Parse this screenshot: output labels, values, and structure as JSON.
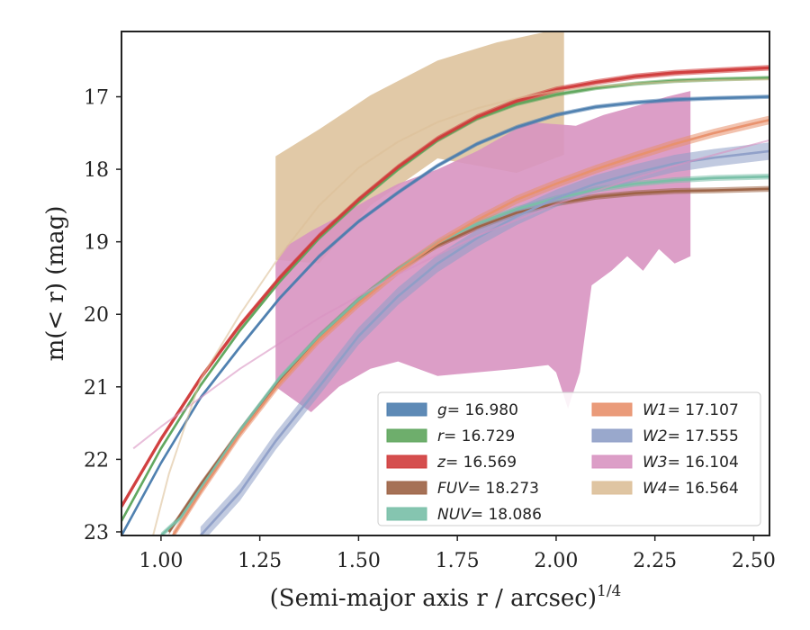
{
  "chart_data": {
    "type": "line",
    "xlabel": "(Semi-major axis r / arcsec)",
    "xlabel_sup": "1/4",
    "ylabel": "m(< r) (mag)",
    "xlim": [
      0.9,
      2.54
    ],
    "ylim": [
      23.05,
      16.1
    ],
    "y_inverted": true,
    "x_ticks": [
      1.0,
      1.25,
      1.5,
      1.75,
      2.0,
      2.25,
      2.5
    ],
    "x_tick_labels": [
      "1.00",
      "1.25",
      "1.50",
      "1.75",
      "2.00",
      "2.25",
      "2.50"
    ],
    "y_ticks": [
      17,
      18,
      19,
      20,
      21,
      22,
      23
    ],
    "y_tick_labels": [
      "17",
      "18",
      "19",
      "20",
      "21",
      "22",
      "23"
    ],
    "legend_placement": "lower-right",
    "series": [
      {
        "name": "g",
        "label": "g = 16.980",
        "color": "#4c7dae",
        "band": 0.03,
        "x": [
          0.9,
          1.0,
          1.1,
          1.2,
          1.3,
          1.4,
          1.5,
          1.6,
          1.7,
          1.8,
          1.9,
          2.0,
          2.1,
          2.2,
          2.3,
          2.4,
          2.54
        ],
        "y": [
          23.05,
          22.05,
          21.15,
          20.45,
          19.78,
          19.2,
          18.72,
          18.32,
          17.95,
          17.65,
          17.42,
          17.25,
          17.14,
          17.08,
          17.04,
          17.02,
          17.0
        ]
      },
      {
        "name": "r",
        "label": "r = 16.729",
        "color": "#5ea55c",
        "band": 0.03,
        "x": [
          0.9,
          1.0,
          1.1,
          1.2,
          1.3,
          1.4,
          1.5,
          1.6,
          1.7,
          1.8,
          1.9,
          2.0,
          2.1,
          2.2,
          2.3,
          2.4,
          2.54
        ],
        "y": [
          22.85,
          21.85,
          20.98,
          20.22,
          19.55,
          18.95,
          18.45,
          18.0,
          17.6,
          17.3,
          17.1,
          16.97,
          16.88,
          16.82,
          16.78,
          16.76,
          16.74
        ]
      },
      {
        "name": "z",
        "label": "z = 16.569",
        "color": "#d03b3b",
        "band": 0.04,
        "x": [
          0.9,
          1.0,
          1.1,
          1.2,
          1.3,
          1.4,
          1.5,
          1.6,
          1.7,
          1.8,
          1.9,
          2.0,
          2.1,
          2.2,
          2.3,
          2.4,
          2.54
        ],
        "y": [
          22.65,
          21.72,
          20.88,
          20.15,
          19.5,
          18.92,
          18.42,
          17.97,
          17.58,
          17.28,
          17.06,
          16.9,
          16.8,
          16.72,
          16.67,
          16.64,
          16.6
        ]
      },
      {
        "name": "FUV",
        "label": "FUV = 18.273",
        "color": "#9c6244",
        "band": 0.04,
        "x": [
          1.02,
          1.1,
          1.2,
          1.3,
          1.4,
          1.5,
          1.6,
          1.7,
          1.8,
          1.9,
          2.0,
          2.1,
          2.2,
          2.3,
          2.4,
          2.54
        ],
        "y": [
          23.0,
          22.35,
          21.6,
          20.9,
          20.3,
          19.8,
          19.38,
          19.05,
          18.8,
          18.6,
          18.47,
          18.38,
          18.33,
          18.3,
          18.29,
          18.27
        ]
      },
      {
        "name": "NUV",
        "label": "NUV = 18.086",
        "color": "#78bfa7",
        "band": 0.04,
        "x": [
          1.0,
          1.05,
          1.1,
          1.2,
          1.3,
          1.4,
          1.5,
          1.6,
          1.7,
          1.8,
          1.9,
          2.0,
          2.1,
          2.2,
          2.3,
          2.4,
          2.54
        ],
        "y": [
          23.05,
          22.8,
          22.4,
          21.6,
          20.88,
          20.3,
          19.8,
          19.38,
          19.02,
          18.75,
          18.55,
          18.4,
          18.28,
          18.2,
          18.15,
          18.12,
          18.1
        ]
      },
      {
        "name": "W1",
        "label": "W1 = 17.107",
        "color": "#e8906c",
        "band": 0.06,
        "x": [
          1.03,
          1.1,
          1.2,
          1.3,
          1.4,
          1.5,
          1.6,
          1.7,
          1.8,
          1.9,
          2.0,
          2.1,
          2.2,
          2.3,
          2.4,
          2.5,
          2.54
        ],
        "y": [
          23.05,
          22.45,
          21.65,
          20.95,
          20.35,
          19.85,
          19.4,
          19.02,
          18.7,
          18.42,
          18.2,
          18.0,
          17.82,
          17.65,
          17.5,
          17.37,
          17.32
        ]
      },
      {
        "name": "W2",
        "label": "W2 = 17.555",
        "color": "#8e9ec7",
        "band": 0.12,
        "x": [
          1.1,
          1.2,
          1.29,
          1.4,
          1.5,
          1.6,
          1.7,
          1.8,
          1.9,
          2.0,
          2.1,
          2.2,
          2.3,
          2.4,
          2.54
        ],
        "y": [
          23.05,
          22.45,
          21.75,
          21.0,
          20.3,
          19.75,
          19.3,
          18.95,
          18.65,
          18.4,
          18.2,
          18.05,
          17.92,
          17.84,
          17.75
        ]
      },
      {
        "name": "W3",
        "label": "W3 = 16.104",
        "color": "#d893c1",
        "band": 0,
        "x": [
          0.93,
          1.0,
          1.1,
          1.2,
          1.3,
          1.4,
          1.5,
          1.6,
          1.7,
          1.8,
          1.9,
          2.0,
          2.1,
          2.2,
          2.3,
          2.4,
          2.54
        ],
        "y": [
          21.85,
          21.55,
          21.15,
          20.75,
          20.4,
          20.05,
          19.75,
          19.45,
          19.18,
          18.92,
          18.7,
          18.48,
          18.3,
          18.12,
          17.95,
          17.8,
          17.6
        ],
        "region_x": [
          1.29,
          1.32,
          1.38,
          1.45,
          1.53,
          1.6,
          1.7,
          1.8,
          1.93,
          2.05,
          2.12,
          2.22,
          2.28,
          2.34,
          2.34,
          2.3,
          2.26,
          2.22,
          2.18,
          2.14,
          2.09,
          2.06,
          2.03,
          2.0,
          1.98,
          1.9,
          1.8,
          1.7,
          1.6,
          1.53,
          1.45,
          1.38,
          1.29
        ],
        "region_y_upper": [
          19.3,
          19.05,
          18.85,
          18.65,
          18.4,
          18.2,
          18.0,
          17.75,
          17.35,
          17.4,
          17.25,
          17.1,
          17.0,
          16.92
        ],
        "region_y_lower": [
          19.2,
          19.3,
          19.1,
          19.4,
          19.2,
          19.4,
          19.6,
          20.8,
          21.3,
          20.8,
          20.7,
          20.75,
          20.8,
          20.85,
          20.65,
          20.75,
          21.0,
          21.35,
          21.0
        ]
      },
      {
        "name": "W4",
        "label": "W4 = 16.564",
        "color": "#dcbf98",
        "band": 0,
        "x": [
          0.98,
          1.02,
          1.1,
          1.2,
          1.3,
          1.4,
          1.5,
          1.6,
          1.7,
          1.8,
          1.9,
          2.0,
          2.1,
          2.2,
          2.3,
          2.4,
          2.54
        ],
        "y": [
          23.05,
          22.2,
          20.9,
          20.0,
          19.2,
          18.5,
          17.98,
          17.62,
          17.35,
          17.16,
          17.02,
          16.92,
          16.86,
          16.82,
          16.79,
          16.77,
          16.76
        ],
        "region_x": [
          1.29,
          1.4,
          1.53,
          1.7,
          1.85,
          2.02,
          2.02,
          1.9,
          1.7,
          1.53,
          1.4,
          1.29
        ],
        "region_y_upper": [
          17.82,
          17.45,
          16.98,
          16.5,
          16.25,
          16.05
        ],
        "region_y_lower": [
          17.8,
          18.05,
          17.85,
          18.5,
          19.3,
          19.25
        ]
      }
    ]
  },
  "legend": {
    "items": [
      {
        "symbol": "g",
        "value": "= 16.980"
      },
      {
        "symbol": "r",
        "value": "= 16.729"
      },
      {
        "symbol": "z",
        "value": "= 16.569"
      },
      {
        "symbol": "FUV",
        "value": "= 18.273"
      },
      {
        "symbol": "NUV",
        "value": "= 18.086"
      },
      {
        "symbol": "W1",
        "value": "= 17.107"
      },
      {
        "symbol": "W2",
        "value": "= 17.555"
      },
      {
        "symbol": "W3",
        "value": "= 16.104"
      },
      {
        "symbol": "W4",
        "value": "= 16.564"
      }
    ]
  }
}
